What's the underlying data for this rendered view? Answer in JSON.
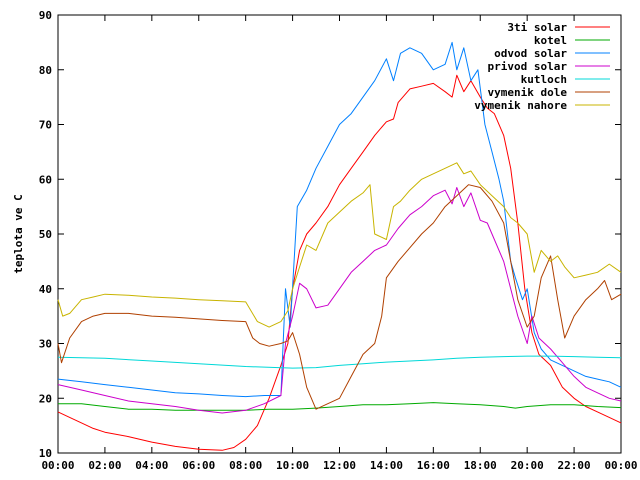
{
  "chart_data": {
    "type": "line",
    "title": "",
    "xlabel": "",
    "ylabel": "teplota ve C",
    "xlim": [
      0,
      24
    ],
    "ylim": [
      10,
      90
    ],
    "grid": false,
    "legend_position": "top-right",
    "y_ticks": [
      "10",
      "20",
      "30",
      "40",
      "50",
      "60",
      "70",
      "80",
      "90"
    ],
    "x_ticks": [
      "00:00",
      "02:00",
      "04:00",
      "06:00",
      "08:00",
      "10:00",
      "12:00",
      "14:00",
      "16:00",
      "18:00",
      "20:00",
      "22:00",
      "00:00"
    ],
    "series": [
      {
        "name": "3ti solar",
        "color": "#ff0000",
        "points": [
          [
            0,
            17.5
          ],
          [
            0.5,
            16.5
          ],
          [
            1,
            15.5
          ],
          [
            1.5,
            14.5
          ],
          [
            2,
            13.8
          ],
          [
            3,
            13.0
          ],
          [
            4,
            12.0
          ],
          [
            5,
            11.2
          ],
          [
            6,
            10.7
          ],
          [
            7,
            10.5
          ],
          [
            7.5,
            11.0
          ],
          [
            8,
            12.5
          ],
          [
            8.5,
            15.0
          ],
          [
            9,
            20.0
          ],
          [
            9.5,
            26.0
          ],
          [
            9.8,
            30.0
          ],
          [
            10,
            40.0
          ],
          [
            10.3,
            47.0
          ],
          [
            10.6,
            50.0
          ],
          [
            11,
            52.0
          ],
          [
            11.5,
            55.0
          ],
          [
            12,
            59.0
          ],
          [
            12.5,
            62.0
          ],
          [
            13,
            65.0
          ],
          [
            13.5,
            68.0
          ],
          [
            14,
            70.5
          ],
          [
            14.3,
            71.0
          ],
          [
            14.5,
            74.0
          ],
          [
            15,
            76.5
          ],
          [
            15.5,
            77.0
          ],
          [
            16,
            77.5
          ],
          [
            16.5,
            76.0
          ],
          [
            16.8,
            75.0
          ],
          [
            17,
            79.0
          ],
          [
            17.3,
            76.0
          ],
          [
            17.6,
            78.0
          ],
          [
            18,
            75.0
          ],
          [
            18.3,
            73.0
          ],
          [
            18.6,
            72.0
          ],
          [
            19,
            68.0
          ],
          [
            19.3,
            62.0
          ],
          [
            19.6,
            52.0
          ],
          [
            19.9,
            40.0
          ],
          [
            20.2,
            32.0
          ],
          [
            20.5,
            28.0
          ],
          [
            21,
            26.0
          ],
          [
            21.5,
            22.0
          ],
          [
            22,
            20.0
          ],
          [
            22.5,
            18.5
          ],
          [
            23,
            17.5
          ],
          [
            23.5,
            16.5
          ],
          [
            24,
            15.5
          ]
        ]
      },
      {
        "name": "kotel",
        "color": "#00aa00",
        "points": [
          [
            0,
            19.0
          ],
          [
            1,
            19.0
          ],
          [
            2,
            18.5
          ],
          [
            3,
            18.0
          ],
          [
            4,
            18.0
          ],
          [
            5,
            17.8
          ],
          [
            6,
            17.8
          ],
          [
            7,
            17.8
          ],
          [
            8,
            17.8
          ],
          [
            9,
            18.0
          ],
          [
            10,
            18.0
          ],
          [
            11,
            18.2
          ],
          [
            12,
            18.5
          ],
          [
            13,
            18.8
          ],
          [
            14,
            18.8
          ],
          [
            15,
            19.0
          ],
          [
            16,
            19.2
          ],
          [
            17,
            19.0
          ],
          [
            18,
            18.8
          ],
          [
            19,
            18.5
          ],
          [
            19.5,
            18.2
          ],
          [
            20,
            18.5
          ],
          [
            21,
            18.8
          ],
          [
            22,
            18.8
          ],
          [
            23,
            18.5
          ],
          [
            24,
            18.3
          ]
        ]
      },
      {
        "name": "odvod solar",
        "color": "#0080ff",
        "points": [
          [
            0,
            23.5
          ],
          [
            1,
            23.0
          ],
          [
            2,
            22.5
          ],
          [
            3,
            22.0
          ],
          [
            4,
            21.5
          ],
          [
            5,
            21.0
          ],
          [
            6,
            20.8
          ],
          [
            7,
            20.5
          ],
          [
            8,
            20.3
          ],
          [
            8.8,
            20.5
          ],
          [
            9.5,
            20.5
          ],
          [
            9.7,
            40.0
          ],
          [
            9.9,
            33.0
          ],
          [
            10.2,
            55.0
          ],
          [
            10.6,
            58.0
          ],
          [
            11,
            62.0
          ],
          [
            11.5,
            66.0
          ],
          [
            12,
            70.0
          ],
          [
            12.5,
            72.0
          ],
          [
            13,
            75.0
          ],
          [
            13.5,
            78.0
          ],
          [
            14,
            82.0
          ],
          [
            14.3,
            78.0
          ],
          [
            14.6,
            83.0
          ],
          [
            15,
            84.0
          ],
          [
            15.5,
            83.0
          ],
          [
            16,
            80.0
          ],
          [
            16.5,
            81.0
          ],
          [
            16.8,
            85.0
          ],
          [
            17,
            80.0
          ],
          [
            17.3,
            84.0
          ],
          [
            17.6,
            78.0
          ],
          [
            17.9,
            80.0
          ],
          [
            18.2,
            70.0
          ],
          [
            18.5,
            65.0
          ],
          [
            18.8,
            60.0
          ],
          [
            19,
            56.0
          ],
          [
            19.3,
            45.0
          ],
          [
            19.5,
            42.0
          ],
          [
            19.8,
            38.0
          ],
          [
            20,
            40.0
          ],
          [
            20.3,
            32.0
          ],
          [
            20.6,
            29.0
          ],
          [
            21,
            27.0
          ],
          [
            21.5,
            26.0
          ],
          [
            22,
            25.0
          ],
          [
            22.5,
            24.0
          ],
          [
            23,
            23.5
          ],
          [
            23.5,
            23.0
          ],
          [
            24,
            22.0
          ]
        ]
      },
      {
        "name": "privod solar",
        "color": "#cc00cc",
        "points": [
          [
            0,
            22.5
          ],
          [
            1,
            21.5
          ],
          [
            2,
            20.5
          ],
          [
            3,
            19.5
          ],
          [
            4,
            19.0
          ],
          [
            5,
            18.5
          ],
          [
            6,
            17.8
          ],
          [
            7,
            17.3
          ],
          [
            8,
            17.8
          ],
          [
            8.8,
            19.0
          ],
          [
            9.5,
            20.5
          ],
          [
            9.7,
            30.0
          ],
          [
            10,
            35.0
          ],
          [
            10.3,
            41.0
          ],
          [
            10.6,
            40.0
          ],
          [
            11,
            36.5
          ],
          [
            11.5,
            37.0
          ],
          [
            12,
            40.0
          ],
          [
            12.5,
            43.0
          ],
          [
            13,
            45.0
          ],
          [
            13.5,
            47.0
          ],
          [
            14,
            48.0
          ],
          [
            14.5,
            51.0
          ],
          [
            15,
            53.5
          ],
          [
            15.5,
            55.0
          ],
          [
            16,
            57.0
          ],
          [
            16.5,
            58.0
          ],
          [
            16.8,
            55.5
          ],
          [
            17,
            58.5
          ],
          [
            17.3,
            55.0
          ],
          [
            17.6,
            57.5
          ],
          [
            18,
            52.5
          ],
          [
            18.3,
            52.0
          ],
          [
            18.5,
            50.0
          ],
          [
            19,
            45.0
          ],
          [
            19.3,
            40.0
          ],
          [
            19.6,
            35.0
          ],
          [
            20,
            30.0
          ],
          [
            20.2,
            35.0
          ],
          [
            20.5,
            31.0
          ],
          [
            21,
            29.0
          ],
          [
            21.5,
            26.5
          ],
          [
            22,
            24.0
          ],
          [
            22.5,
            22.0
          ],
          [
            23,
            21.0
          ],
          [
            23.5,
            20.0
          ],
          [
            24,
            19.5
          ]
        ]
      },
      {
        "name": "kutloch",
        "color": "#00d8d8",
        "points": [
          [
            0,
            27.5
          ],
          [
            2,
            27.3
          ],
          [
            4,
            26.8
          ],
          [
            6,
            26.3
          ],
          [
            8,
            25.8
          ],
          [
            10,
            25.5
          ],
          [
            11,
            25.6
          ],
          [
            12,
            26.0
          ],
          [
            13,
            26.3
          ],
          [
            14,
            26.6
          ],
          [
            15,
            26.8
          ],
          [
            16,
            27.0
          ],
          [
            17,
            27.3
          ],
          [
            18,
            27.5
          ],
          [
            19,
            27.6
          ],
          [
            20,
            27.7
          ],
          [
            21,
            27.7
          ],
          [
            22,
            27.6
          ],
          [
            23,
            27.5
          ],
          [
            24,
            27.4
          ]
        ]
      },
      {
        "name": "vymenik dole",
        "color": "#b04000",
        "points": [
          [
            0,
            30.0
          ],
          [
            0.15,
            26.5
          ],
          [
            0.5,
            31.0
          ],
          [
            1,
            34.0
          ],
          [
            1.5,
            35.0
          ],
          [
            2,
            35.5
          ],
          [
            3,
            35.5
          ],
          [
            4,
            35.0
          ],
          [
            5,
            34.8
          ],
          [
            6,
            34.5
          ],
          [
            7,
            34.2
          ],
          [
            8,
            34.0
          ],
          [
            8.3,
            31.0
          ],
          [
            8.6,
            30.0
          ],
          [
            9,
            29.5
          ],
          [
            9.5,
            30.0
          ],
          [
            9.8,
            30.5
          ],
          [
            10,
            32.0
          ],
          [
            10.3,
            28.0
          ],
          [
            10.6,
            22.0
          ],
          [
            11,
            18.0
          ],
          [
            11.5,
            19.0
          ],
          [
            12,
            20.0
          ],
          [
            12.5,
            24.0
          ],
          [
            13,
            28.0
          ],
          [
            13.5,
            30.0
          ],
          [
            13.8,
            35.0
          ],
          [
            14,
            42.0
          ],
          [
            14.5,
            45.0
          ],
          [
            15,
            47.5
          ],
          [
            15.5,
            50.0
          ],
          [
            16,
            52.0
          ],
          [
            16.5,
            55.0
          ],
          [
            17,
            57.0
          ],
          [
            17.5,
            59.0
          ],
          [
            18,
            58.5
          ],
          [
            18.5,
            56.0
          ],
          [
            19,
            52.0
          ],
          [
            19.3,
            45.0
          ],
          [
            19.6,
            38.0
          ],
          [
            20,
            33.0
          ],
          [
            20.3,
            35.0
          ],
          [
            20.6,
            42.0
          ],
          [
            21,
            46.0
          ],
          [
            21.3,
            38.0
          ],
          [
            21.6,
            31.0
          ],
          [
            22,
            35.0
          ],
          [
            22.5,
            38.0
          ],
          [
            23,
            40.0
          ],
          [
            23.3,
            41.5
          ],
          [
            23.6,
            38.0
          ],
          [
            24,
            39.0
          ]
        ]
      },
      {
        "name": "vymenik nahore",
        "color": "#c8b400",
        "points": [
          [
            0,
            38.0
          ],
          [
            0.2,
            35.0
          ],
          [
            0.5,
            35.5
          ],
          [
            1,
            38.0
          ],
          [
            1.5,
            38.5
          ],
          [
            2,
            39.0
          ],
          [
            3,
            38.8
          ],
          [
            4,
            38.5
          ],
          [
            5,
            38.3
          ],
          [
            6,
            38.0
          ],
          [
            7,
            37.8
          ],
          [
            8,
            37.6
          ],
          [
            8.5,
            34.0
          ],
          [
            9,
            33.0
          ],
          [
            9.5,
            34.0
          ],
          [
            9.8,
            36.0
          ],
          [
            10,
            40.0
          ],
          [
            10.3,
            44.0
          ],
          [
            10.6,
            48.0
          ],
          [
            11,
            47.0
          ],
          [
            11.5,
            52.0
          ],
          [
            12,
            54.0
          ],
          [
            12.5,
            56.0
          ],
          [
            13,
            57.5
          ],
          [
            13.3,
            59.0
          ],
          [
            13.5,
            50.0
          ],
          [
            14,
            49.0
          ],
          [
            14.3,
            55.0
          ],
          [
            14.6,
            56.0
          ],
          [
            15,
            58.0
          ],
          [
            15.5,
            60.0
          ],
          [
            16,
            61.0
          ],
          [
            16.5,
            62.0
          ],
          [
            17,
            63.0
          ],
          [
            17.3,
            61.0
          ],
          [
            17.6,
            61.5
          ],
          [
            18,
            59.0
          ],
          [
            18.5,
            57.0
          ],
          [
            19,
            55.0
          ],
          [
            19.3,
            53.0
          ],
          [
            19.6,
            52.0
          ],
          [
            20,
            50.0
          ],
          [
            20.3,
            43.0
          ],
          [
            20.6,
            47.0
          ],
          [
            21,
            45.0
          ],
          [
            21.3,
            46.0
          ],
          [
            21.6,
            44.0
          ],
          [
            22,
            42.0
          ],
          [
            22.5,
            42.5
          ],
          [
            23,
            43.0
          ],
          [
            23.5,
            44.5
          ],
          [
            24,
            43.0
          ]
        ]
      }
    ]
  }
}
